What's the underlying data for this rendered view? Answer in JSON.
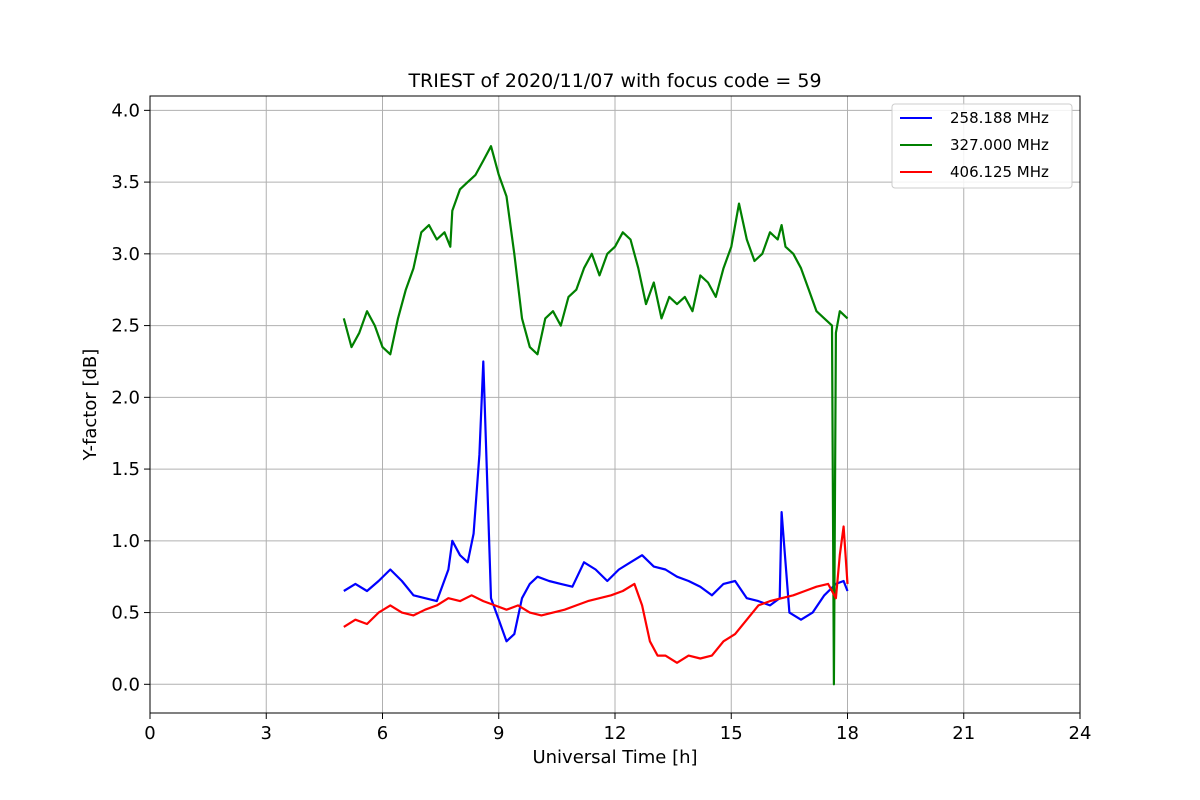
{
  "chart_data": {
    "type": "line",
    "title": "TRIEST of 2020/11/07 with focus code = 59",
    "xlabel": "Universal Time [h]",
    "ylabel": "Y-factor [dB]",
    "xlim": [
      0,
      24
    ],
    "ylim": [
      -0.2,
      4.1
    ],
    "xticks": [
      0,
      3,
      6,
      9,
      12,
      15,
      18,
      21,
      24
    ],
    "yticks": [
      0.0,
      0.5,
      1.0,
      1.5,
      2.0,
      2.5,
      3.0,
      3.5,
      4.0
    ],
    "ytick_labels": [
      "0.0",
      "0.5",
      "1.0",
      "1.5",
      "2.0",
      "2.5",
      "3.0",
      "3.5",
      "4.0"
    ],
    "grid": true,
    "legend_position": "top-right",
    "series": [
      {
        "name": "258.188 MHz",
        "color": "#0000ff",
        "x": [
          5.0,
          5.3,
          5.6,
          5.9,
          6.2,
          6.5,
          6.8,
          7.1,
          7.4,
          7.7,
          7.8,
          8.0,
          8.2,
          8.35,
          8.5,
          8.6,
          8.8,
          9.0,
          9.2,
          9.4,
          9.6,
          9.8,
          10.0,
          10.3,
          10.6,
          10.9,
          11.2,
          11.5,
          11.8,
          12.1,
          12.4,
          12.7,
          13.0,
          13.3,
          13.6,
          13.9,
          14.2,
          14.5,
          14.8,
          15.1,
          15.4,
          15.7,
          16.0,
          16.25,
          16.3,
          16.5,
          16.8,
          17.1,
          17.4,
          17.7,
          17.9,
          18.0
        ],
        "y": [
          0.65,
          0.7,
          0.65,
          0.72,
          0.8,
          0.72,
          0.62,
          0.6,
          0.58,
          0.8,
          1.0,
          0.9,
          0.85,
          1.05,
          1.6,
          2.25,
          0.6,
          0.45,
          0.3,
          0.35,
          0.6,
          0.7,
          0.75,
          0.72,
          0.7,
          0.68,
          0.85,
          0.8,
          0.72,
          0.8,
          0.85,
          0.9,
          0.82,
          0.8,
          0.75,
          0.72,
          0.68,
          0.62,
          0.7,
          0.72,
          0.6,
          0.58,
          0.55,
          0.6,
          1.2,
          0.5,
          0.45,
          0.5,
          0.62,
          0.7,
          0.72,
          0.65
        ]
      },
      {
        "name": "327.000 MHz",
        "color": "#008000",
        "x": [
          5.0,
          5.2,
          5.4,
          5.6,
          5.8,
          6.0,
          6.2,
          6.4,
          6.6,
          6.8,
          7.0,
          7.2,
          7.4,
          7.6,
          7.75,
          7.8,
          8.0,
          8.2,
          8.4,
          8.6,
          8.8,
          9.0,
          9.2,
          9.4,
          9.6,
          9.8,
          10.0,
          10.2,
          10.4,
          10.6,
          10.8,
          11.0,
          11.2,
          11.4,
          11.6,
          11.8,
          12.0,
          12.2,
          12.4,
          12.6,
          12.8,
          13.0,
          13.2,
          13.4,
          13.6,
          13.8,
          14.0,
          14.2,
          14.4,
          14.6,
          14.8,
          15.0,
          15.2,
          15.4,
          15.6,
          15.8,
          16.0,
          16.2,
          16.3,
          16.4,
          16.6,
          16.8,
          17.0,
          17.2,
          17.4,
          17.6,
          17.65,
          17.7,
          17.8,
          18.0
        ],
        "y": [
          2.55,
          2.35,
          2.45,
          2.6,
          2.5,
          2.35,
          2.3,
          2.55,
          2.75,
          2.9,
          3.15,
          3.2,
          3.1,
          3.15,
          3.05,
          3.3,
          3.45,
          3.5,
          3.55,
          3.65,
          3.75,
          3.55,
          3.4,
          3.0,
          2.55,
          2.35,
          2.3,
          2.55,
          2.6,
          2.5,
          2.7,
          2.75,
          2.9,
          3.0,
          2.85,
          3.0,
          3.05,
          3.15,
          3.1,
          2.9,
          2.65,
          2.8,
          2.55,
          2.7,
          2.65,
          2.7,
          2.6,
          2.85,
          2.8,
          2.7,
          2.9,
          3.05,
          3.35,
          3.1,
          2.95,
          3.0,
          3.15,
          3.1,
          3.2,
          3.05,
          3.0,
          2.9,
          2.75,
          2.6,
          2.55,
          2.5,
          0.0,
          2.45,
          2.6,
          2.55
        ]
      },
      {
        "name": "406.125 MHz",
        "color": "#ff0000",
        "x": [
          5.0,
          5.3,
          5.6,
          5.9,
          6.2,
          6.5,
          6.8,
          7.1,
          7.4,
          7.7,
          8.0,
          8.3,
          8.6,
          8.9,
          9.2,
          9.5,
          9.8,
          10.1,
          10.4,
          10.7,
          11.0,
          11.3,
          11.6,
          11.9,
          12.2,
          12.5,
          12.7,
          12.9,
          13.1,
          13.3,
          13.6,
          13.9,
          14.2,
          14.5,
          14.8,
          15.1,
          15.4,
          15.7,
          16.0,
          16.3,
          16.6,
          16.9,
          17.2,
          17.5,
          17.7,
          17.8,
          17.9,
          18.0
        ],
        "y": [
          0.4,
          0.45,
          0.42,
          0.5,
          0.55,
          0.5,
          0.48,
          0.52,
          0.55,
          0.6,
          0.58,
          0.62,
          0.58,
          0.55,
          0.52,
          0.55,
          0.5,
          0.48,
          0.5,
          0.52,
          0.55,
          0.58,
          0.6,
          0.62,
          0.65,
          0.7,
          0.55,
          0.3,
          0.2,
          0.2,
          0.15,
          0.2,
          0.18,
          0.2,
          0.3,
          0.35,
          0.45,
          0.55,
          0.58,
          0.6,
          0.62,
          0.65,
          0.68,
          0.7,
          0.6,
          0.9,
          1.1,
          0.7
        ]
      }
    ]
  }
}
